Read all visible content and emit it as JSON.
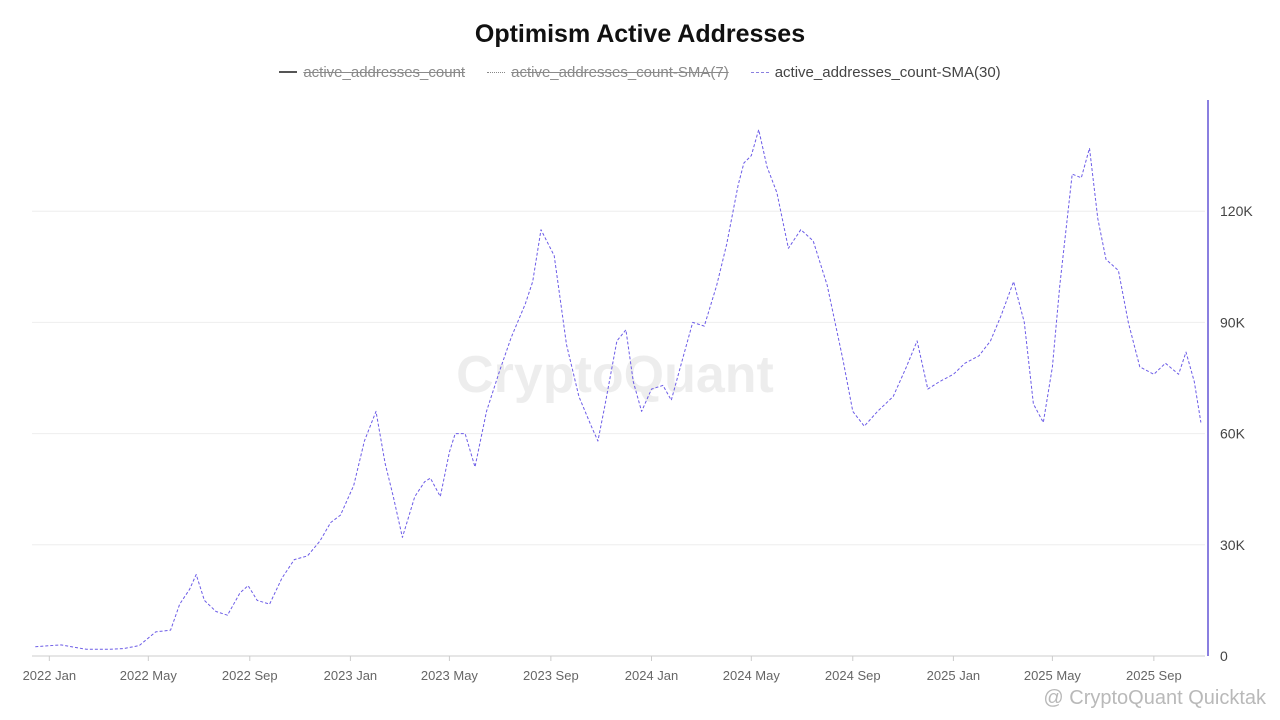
{
  "chart_data": {
    "type": "line",
    "title": "Optimism Active Addresses",
    "series": [
      {
        "name": "active_addresses_count",
        "visible": false,
        "style": "solid",
        "color": "#555555"
      },
      {
        "name": "active_addresses_count-SMA(7)",
        "visible": false,
        "style": "dotted",
        "color": "#888888"
      },
      {
        "name": "active_addresses_count-SMA(30)",
        "visible": true,
        "style": "dashed",
        "color": "#6c5ce7",
        "x": [
          "2021-12-15",
          "2022-01-15",
          "2022-02-15",
          "2022-03-15",
          "2022-04-01",
          "2022-04-20",
          "2022-05-10",
          "2022-05-28",
          "2022-06-08",
          "2022-06-20",
          "2022-06-28",
          "2022-07-08",
          "2022-07-22",
          "2022-08-05",
          "2022-08-20",
          "2022-08-30",
          "2022-09-10",
          "2022-09-25",
          "2022-10-10",
          "2022-10-25",
          "2022-11-10",
          "2022-11-25",
          "2022-12-08",
          "2022-12-20",
          "2023-01-05",
          "2023-01-18",
          "2023-02-01",
          "2023-02-12",
          "2023-02-22",
          "2023-03-05",
          "2023-03-20",
          "2023-04-01",
          "2023-04-08",
          "2023-04-20",
          "2023-05-01",
          "2023-05-08",
          "2023-05-20",
          "2023-06-01",
          "2023-06-15",
          "2023-07-01",
          "2023-07-15",
          "2023-08-01",
          "2023-08-10",
          "2023-08-20",
          "2023-09-05",
          "2023-09-20",
          "2023-10-05",
          "2023-10-20",
          "2023-10-28",
          "2023-11-05",
          "2023-11-20",
          "2023-12-01",
          "2023-12-10",
          "2023-12-20",
          "2024-01-01",
          "2024-01-15",
          "2024-01-25",
          "2024-02-05",
          "2024-02-20",
          "2024-03-05",
          "2024-03-20",
          "2024-04-01",
          "2024-04-15",
          "2024-04-22",
          "2024-05-01",
          "2024-05-10",
          "2024-05-20",
          "2024-06-01",
          "2024-06-15",
          "2024-06-30",
          "2024-07-15",
          "2024-08-01",
          "2024-08-20",
          "2024-09-01",
          "2024-09-15",
          "2024-10-01",
          "2024-10-20",
          "2024-11-05",
          "2024-11-18",
          "2024-12-01",
          "2024-12-15",
          "2025-01-01",
          "2025-01-15",
          "2025-02-01",
          "2025-02-15",
          "2025-02-28",
          "2025-03-15",
          "2025-03-28",
          "2025-04-08",
          "2025-04-20",
          "2025-05-01",
          "2025-05-10",
          "2025-05-25",
          "2025-06-05",
          "2025-06-15",
          "2025-06-25",
          "2025-07-05",
          "2025-07-20",
          "2025-08-01",
          "2025-08-15",
          "2025-09-01",
          "2025-09-15",
          "2025-10-01",
          "2025-10-10",
          "2025-10-20",
          "2025-10-28"
        ],
        "y": [
          2500,
          3000,
          1800,
          1800,
          2000,
          2800,
          6500,
          7000,
          14000,
          18000,
          22000,
          15000,
          12000,
          11000,
          17000,
          19000,
          15000,
          14000,
          21000,
          26000,
          27000,
          31000,
          36000,
          38000,
          46000,
          58000,
          66000,
          52000,
          43000,
          32000,
          43000,
          47000,
          48000,
          43000,
          55000,
          60000,
          60000,
          51000,
          66000,
          77000,
          86000,
          95000,
          101000,
          115000,
          108000,
          84000,
          70000,
          62000,
          58000,
          67000,
          85000,
          88000,
          74000,
          66000,
          72000,
          73000,
          69000,
          78000,
          90000,
          89000,
          100000,
          111000,
          127000,
          133000,
          135000,
          142000,
          132000,
          125000,
          110000,
          115000,
          112000,
          100000,
          80000,
          66000,
          62000,
          66000,
          70000,
          78000,
          85000,
          72000,
          74000,
          76000,
          79000,
          81000,
          85000,
          92000,
          101000,
          90000,
          68000,
          63000,
          78000,
          100000,
          130000,
          129000,
          137000,
          118000,
          107000,
          104000,
          90000,
          78000,
          76000,
          79000,
          76000,
          82000,
          74000,
          63000
        ]
      }
    ],
    "x_ticks": [
      "2022 Jan",
      "2022 May",
      "2022 Sep",
      "2023 Jan",
      "2023 May",
      "2023 Sep",
      "2024 Jan",
      "2024 May",
      "2024 Sep",
      "2025 Jan",
      "2025 May",
      "2025 Sep"
    ],
    "x_tick_dates": [
      "2022-01-01",
      "2022-05-01",
      "2022-09-01",
      "2023-01-01",
      "2023-05-01",
      "2023-09-01",
      "2024-01-01",
      "2024-05-01",
      "2024-09-01",
      "2025-01-01",
      "2025-05-01",
      "2025-09-01"
    ],
    "y_ticks": [
      "0",
      "30K",
      "60K",
      "90K",
      "120K"
    ],
    "y_tick_values": [
      0,
      30000,
      60000,
      90000,
      120000
    ],
    "ylim": [
      0,
      150000
    ],
    "grid": true,
    "legend": "top-center",
    "yaxis_side": "right",
    "watermark": "CryptoQuant",
    "credit": "@ CryptoQuant Quicktak"
  }
}
